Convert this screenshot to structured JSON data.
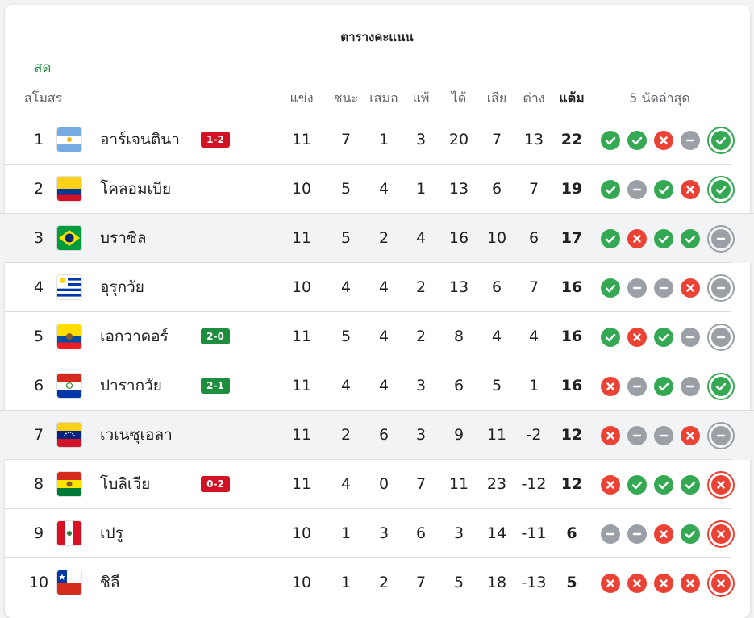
{
  "title": "ตารางคะแนน",
  "live_label": "สด",
  "headers": {
    "club": "สโมสร",
    "played": "แข่ง",
    "won": "ชนะ",
    "drawn": "เสมอ",
    "lost": "แพ้",
    "gf": "ได้",
    "ga": "เสีย",
    "gd": "ต่าง",
    "points": "แต้ม",
    "last5": "5 นัดล่าสุด"
  },
  "colors": {
    "win": "#34a853",
    "loss": "#ea4335",
    "draw": "#9aa0a6",
    "badge_win": "#1e8e3e",
    "badge_loss": "#d01223",
    "live": "#1e8e3e"
  },
  "rows": [
    {
      "rank": "1",
      "team": "อาร์เจนตินา",
      "flag": "argentina-flag",
      "score": "1-2",
      "score_result": "loss",
      "played": "11",
      "won": "7",
      "drawn": "1",
      "lost": "3",
      "gf": "20",
      "ga": "7",
      "gd": "13",
      "points": "22",
      "form": [
        "W",
        "W",
        "L",
        "D",
        "W"
      ],
      "highlight": false
    },
    {
      "rank": "2",
      "team": "โคลอมเบีย",
      "flag": "colombia-flag",
      "score": "",
      "score_result": "",
      "played": "10",
      "won": "5",
      "drawn": "4",
      "lost": "1",
      "gf": "13",
      "ga": "6",
      "gd": "7",
      "points": "19",
      "form": [
        "W",
        "D",
        "W",
        "L",
        "W"
      ],
      "highlight": false
    },
    {
      "rank": "3",
      "team": "บราซิล",
      "flag": "brazil-flag",
      "score": "",
      "score_result": "",
      "played": "11",
      "won": "5",
      "drawn": "2",
      "lost": "4",
      "gf": "16",
      "ga": "10",
      "gd": "6",
      "points": "17",
      "form": [
        "W",
        "L",
        "W",
        "W",
        "D"
      ],
      "highlight": true
    },
    {
      "rank": "4",
      "team": "อุรุกวัย",
      "flag": "uruguay-flag",
      "score": "",
      "score_result": "",
      "played": "10",
      "won": "4",
      "drawn": "4",
      "lost": "2",
      "gf": "13",
      "ga": "6",
      "gd": "7",
      "points": "16",
      "form": [
        "W",
        "D",
        "D",
        "L",
        "D"
      ],
      "highlight": false
    },
    {
      "rank": "5",
      "team": "เอกวาดอร์",
      "flag": "ecuador-flag",
      "score": "2-0",
      "score_result": "win",
      "played": "11",
      "won": "5",
      "drawn": "4",
      "lost": "2",
      "gf": "8",
      "ga": "4",
      "gd": "4",
      "points": "16",
      "form": [
        "W",
        "L",
        "W",
        "D",
        "D"
      ],
      "highlight": false
    },
    {
      "rank": "6",
      "team": "ปารากวัย",
      "flag": "paraguay-flag",
      "score": "2-1",
      "score_result": "win",
      "played": "11",
      "won": "4",
      "drawn": "4",
      "lost": "3",
      "gf": "6",
      "ga": "5",
      "gd": "1",
      "points": "16",
      "form": [
        "L",
        "D",
        "W",
        "D",
        "W"
      ],
      "highlight": false
    },
    {
      "rank": "7",
      "team": "เวเนซุเอลา",
      "flag": "venezuela-flag",
      "score": "",
      "score_result": "",
      "played": "11",
      "won": "2",
      "drawn": "6",
      "lost": "3",
      "gf": "9",
      "ga": "11",
      "gd": "-2",
      "points": "12",
      "form": [
        "L",
        "D",
        "D",
        "L",
        "D"
      ],
      "highlight": true
    },
    {
      "rank": "8",
      "team": "โบลิเวีย",
      "flag": "bolivia-flag",
      "score": "0-2",
      "score_result": "loss",
      "played": "11",
      "won": "4",
      "drawn": "0",
      "lost": "7",
      "gf": "11",
      "ga": "23",
      "gd": "-12",
      "points": "12",
      "form": [
        "L",
        "W",
        "W",
        "W",
        "L"
      ],
      "highlight": false
    },
    {
      "rank": "9",
      "team": "เปรู",
      "flag": "peru-flag",
      "score": "",
      "score_result": "",
      "played": "10",
      "won": "1",
      "drawn": "3",
      "lost": "6",
      "gf": "3",
      "ga": "14",
      "gd": "-11",
      "points": "6",
      "form": [
        "D",
        "D",
        "L",
        "W",
        "L"
      ],
      "highlight": false
    },
    {
      "rank": "10",
      "team": "ชิลี",
      "flag": "chile-flag",
      "score": "",
      "score_result": "",
      "played": "10",
      "won": "1",
      "drawn": "2",
      "lost": "7",
      "gf": "5",
      "ga": "18",
      "gd": "-13",
      "points": "5",
      "form": [
        "L",
        "L",
        "L",
        "L",
        "L"
      ],
      "highlight": false
    }
  ]
}
